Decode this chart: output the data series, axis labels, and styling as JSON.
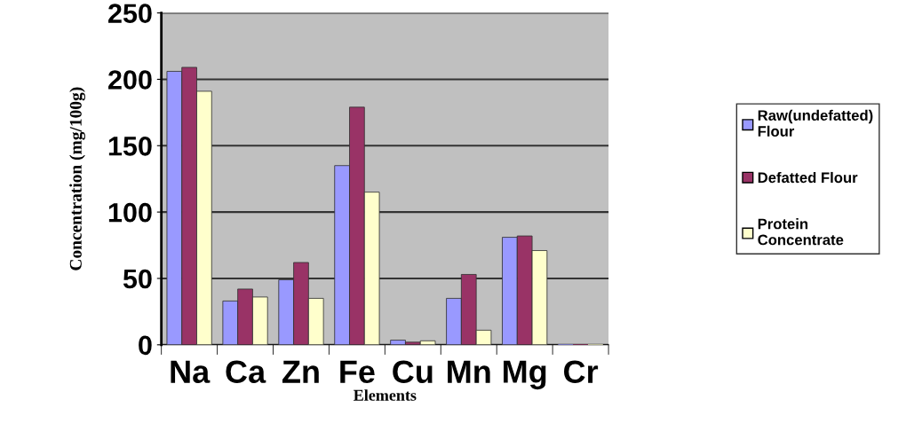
{
  "chart_data": {
    "type": "bar",
    "xlabel": "Elements",
    "ylabel": "Concentration (mg/100g)",
    "categories": [
      "Na",
      "Ca",
      "Zn",
      "Fe",
      "Cu",
      "Mn",
      "Mg",
      "Cr"
    ],
    "series": [
      {
        "name": "Raw(undefatted) Flour",
        "color": "#9999ff",
        "values": [
          206,
          33,
          49,
          135,
          3.5,
          35,
          81,
          0
        ]
      },
      {
        "name": "Defatted Flour",
        "color": "#993366",
        "values": [
          209,
          42,
          62,
          179,
          2,
          53,
          82,
          0
        ]
      },
      {
        "name": "Protein Concentrate",
        "color": "#ffffcc",
        "values": [
          191,
          36,
          35,
          115,
          3,
          11,
          71,
          0
        ]
      }
    ],
    "ylim": [
      0,
      250
    ],
    "yticks": [
      0,
      50,
      100,
      150,
      200,
      250
    ],
    "grid": "y",
    "legend": "right"
  }
}
